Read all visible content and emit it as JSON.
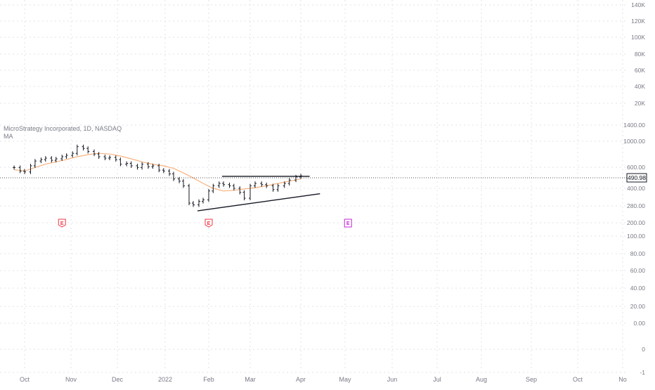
{
  "legend": {
    "symbol_line": "MicroStrategy Incorporated, 1D, NASDAQ",
    "indicator": "MA"
  },
  "price_badge": "490.98",
  "colors": {
    "candle": "#131722",
    "ma": "#f7b27f",
    "earnings_past": "#f23645",
    "earnings_future": "#c026d3",
    "grid": "#e0e3eb",
    "axis_text": "#787b86",
    "price_line": "#555555",
    "trendline": "#131722",
    "badge_bg": "#ffffff",
    "badge_border": "#131722"
  },
  "earnings_label": "E",
  "earnings_marker_icon": "earnings-flag-icon",
  "chart_data": {
    "type": "line",
    "title": "MicroStrategy Incorporated, 1D, NASDAQ",
    "y_scale": "log",
    "last_price": 490.98,
    "x_ticks": [
      "Oct",
      "Nov",
      "Dec",
      "2022",
      "Feb",
      "Mar",
      "Apr",
      "May",
      "Jun",
      "Jul",
      "Aug",
      "Sep",
      "Oct",
      "No"
    ],
    "y_ticks": [
      "140K",
      "120K",
      "100K",
      "80K",
      "60K",
      "40K",
      "20K",
      "1400.00",
      "1000.00",
      "600.00",
      "400.00",
      "280.00",
      "200.00",
      "100.00",
      "80.00",
      "60.00",
      "40.00",
      "20.00",
      "0.00",
      "0",
      "-1"
    ],
    "series": [
      {
        "name": "MA",
        "x": [
          "2021-09-24",
          "2021-10-01",
          "2021-10-08",
          "2021-10-15",
          "2021-10-22",
          "2021-10-29",
          "2021-11-05",
          "2021-11-12",
          "2021-11-19",
          "2021-11-26",
          "2021-12-03",
          "2021-12-10",
          "2021-12-17",
          "2021-12-24",
          "2021-12-31",
          "2022-01-07",
          "2022-01-14",
          "2022-01-21",
          "2022-01-28",
          "2022-02-04",
          "2022-02-11",
          "2022-02-18",
          "2022-02-25",
          "2022-03-04",
          "2022-03-11",
          "2022-03-18",
          "2022-03-25",
          "2022-04-01"
        ],
        "y": [
          575,
          560,
          600,
          640,
          670,
          700,
          740,
          770,
          790,
          780,
          750,
          710,
          670,
          640,
          620,
          590,
          540,
          490,
          440,
          400,
          380,
          385,
          395,
          405,
          420,
          440,
          460,
          480
        ]
      }
    ],
    "candles": {
      "x": [
        "2021-09-24",
        "2021-09-28",
        "2021-10-01",
        "2021-10-05",
        "2021-10-08",
        "2021-10-12",
        "2021-10-15",
        "2021-10-19",
        "2021-10-22",
        "2021-10-26",
        "2021-10-29",
        "2021-11-02",
        "2021-11-05",
        "2021-11-09",
        "2021-11-12",
        "2021-11-16",
        "2021-11-19",
        "2021-11-23",
        "2021-11-26",
        "2021-11-30",
        "2021-12-03",
        "2021-12-07",
        "2021-12-10",
        "2021-12-14",
        "2021-12-17",
        "2021-12-21",
        "2021-12-24",
        "2021-12-28",
        "2021-12-31",
        "2022-01-04",
        "2022-01-07",
        "2022-01-11",
        "2022-01-14",
        "2022-01-18",
        "2022-01-21",
        "2022-01-25",
        "2022-01-28",
        "2022-02-01",
        "2022-02-04",
        "2022-02-08",
        "2022-02-11",
        "2022-02-15",
        "2022-02-18",
        "2022-02-22",
        "2022-02-25",
        "2022-03-01",
        "2022-03-04",
        "2022-03-08",
        "2022-03-11",
        "2022-03-15",
        "2022-03-18",
        "2022-03-22",
        "2022-03-25",
        "2022-03-29",
        "2022-04-01"
      ],
      "close": [
        600,
        560,
        550,
        620,
        680,
        700,
        720,
        690,
        710,
        740,
        760,
        790,
        900,
        870,
        820,
        780,
        740,
        720,
        730,
        700,
        640,
        650,
        620,
        600,
        640,
        610,
        620,
        570,
        560,
        530,
        480,
        460,
        420,
        300,
        290,
        310,
        320,
        380,
        420,
        440,
        430,
        420,
        400,
        370,
        330,
        420,
        440,
        430,
        420,
        390,
        420,
        440,
        470,
        500,
        510
      ]
    },
    "trendlines": [
      {
        "from": [
          "2022-02-10",
          505
        ],
        "to": [
          "2022-04-07",
          505
        ]
      },
      {
        "from": [
          "2022-01-24",
          258
        ],
        "to": [
          "2022-04-14",
          360
        ]
      }
    ],
    "earnings_dates": [
      "2021-10-26",
      "2022-02-01",
      "2022-05-03"
    ]
  }
}
